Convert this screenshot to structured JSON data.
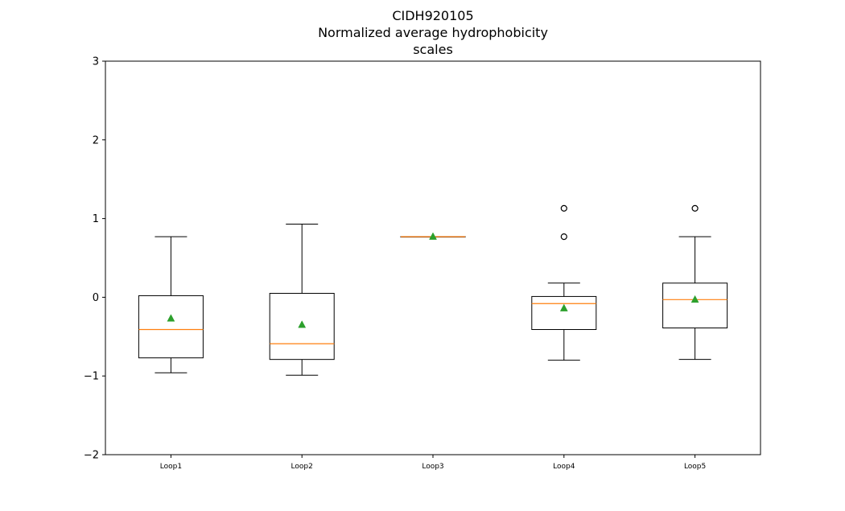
{
  "chart_data": {
    "type": "box",
    "title_lines": [
      "CIDH920105",
      "Normalized average hydrophobicity",
      "scales"
    ],
    "xlabel": "",
    "ylabel": "",
    "ylim": [
      -2,
      3
    ],
    "yticks": [
      -2,
      -1,
      0,
      1,
      2,
      3
    ],
    "ytick_labels": [
      "−2",
      "−1",
      "0",
      "1",
      "2",
      "3"
    ],
    "categories": [
      "Loop1",
      "Loop2",
      "Loop3",
      "Loop4",
      "Loop5"
    ],
    "boxes": [
      {
        "label": "Loop1",
        "whisker_low": -0.96,
        "q1": -0.77,
        "median": -0.41,
        "q3": 0.02,
        "whisker_high": 0.77,
        "mean": -0.27,
        "outliers": []
      },
      {
        "label": "Loop2",
        "whisker_low": -0.99,
        "q1": -0.79,
        "median": -0.59,
        "q3": 0.05,
        "whisker_high": 0.93,
        "mean": -0.35,
        "outliers": []
      },
      {
        "label": "Loop3",
        "whisker_low": 0.77,
        "q1": 0.77,
        "median": 0.77,
        "q3": 0.77,
        "whisker_high": 0.77,
        "mean": 0.77,
        "outliers": []
      },
      {
        "label": "Loop4",
        "whisker_low": -0.8,
        "q1": -0.41,
        "median": -0.08,
        "q3": 0.01,
        "whisker_high": 0.18,
        "mean": -0.14,
        "outliers": [
          0.77,
          1.13
        ]
      },
      {
        "label": "Loop5",
        "whisker_low": -0.79,
        "q1": -0.39,
        "median": -0.03,
        "q3": 0.18,
        "whisker_high": 0.77,
        "mean": -0.03,
        "outliers": [
          1.13
        ]
      }
    ],
    "grid": false,
    "legend": "none",
    "colors": {
      "box": "#000000",
      "median": "#ff7f0e",
      "mean": "#2ca02c",
      "outlier": "#000000"
    }
  }
}
